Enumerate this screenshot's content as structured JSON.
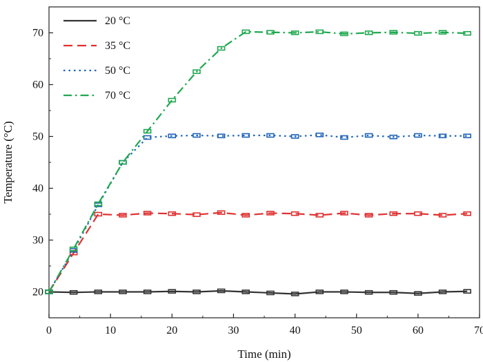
{
  "chart_data": {
    "type": "line",
    "xlabel": "Time (min)",
    "ylabel": "Temperature (°C)",
    "xlim": [
      0,
      70
    ],
    "ylim": [
      15,
      75
    ],
    "xticks": [
      0,
      10,
      20,
      30,
      40,
      50,
      60,
      70
    ],
    "yticks": [
      20,
      30,
      40,
      50,
      60,
      70
    ],
    "grid": false,
    "legend_position": "top-left",
    "series": [
      {
        "name": "20 °C",
        "color": "#333333",
        "dash": "solid",
        "x": [
          0,
          4,
          8,
          12,
          16,
          20,
          24,
          28,
          32,
          36,
          40,
          44,
          48,
          52,
          56,
          60,
          64,
          68
        ],
        "y": [
          20.0,
          19.9,
          20.0,
          20.0,
          20.0,
          20.1,
          20.0,
          20.2,
          20.0,
          19.8,
          19.6,
          20.0,
          20.0,
          19.9,
          19.9,
          19.7,
          20.0,
          20.1
        ]
      },
      {
        "name": "35 °C",
        "color": "#e03030",
        "dash": "dashed",
        "x": [
          0,
          4,
          8,
          12,
          16,
          20,
          24,
          28,
          32,
          36,
          40,
          44,
          48,
          52,
          56,
          60,
          64,
          68
        ],
        "y": [
          20.0,
          27.5,
          35.0,
          34.8,
          35.2,
          35.1,
          34.9,
          35.3,
          34.8,
          35.2,
          35.1,
          34.8,
          35.2,
          34.8,
          35.1,
          35.1,
          34.8,
          35.1
        ]
      },
      {
        "name": "50 °C",
        "color": "#1f63b8",
        "dash": "dotted",
        "x": [
          0,
          4,
          8,
          12,
          16,
          20,
          24,
          28,
          32,
          36,
          40,
          44,
          48,
          52,
          56,
          60,
          64,
          68
        ],
        "y": [
          20.0,
          28.0,
          36.8,
          45.0,
          49.8,
          50.1,
          50.2,
          50.1,
          50.2,
          50.2,
          50.0,
          50.3,
          49.8,
          50.2,
          49.9,
          50.2,
          50.1,
          50.1
        ]
      },
      {
        "name": "70 °C",
        "color": "#1fa84f",
        "dash": "dashdot",
        "x": [
          0,
          4,
          8,
          12,
          16,
          20,
          24,
          28,
          32,
          36,
          40,
          44,
          48,
          52,
          56,
          60,
          64,
          68
        ],
        "y": [
          20.0,
          28.3,
          37.0,
          45.0,
          51.0,
          57.0,
          62.5,
          67.0,
          70.2,
          70.1,
          70.0,
          70.2,
          69.8,
          70.0,
          70.1,
          69.9,
          70.1,
          69.9
        ]
      }
    ]
  }
}
